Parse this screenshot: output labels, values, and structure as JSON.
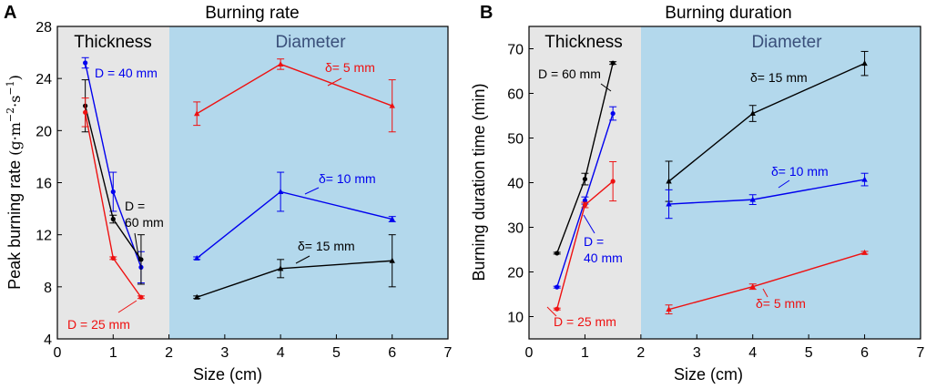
{
  "panels": [
    {
      "letter": "A",
      "title": "Burning rate",
      "xlabel": "Size (cm)",
      "ylabel": "Peak burning rate (g·m⁻²·s⁻¹)",
      "ylabel_main": "Peak burning rate ",
      "ylabel_unit_a": "(g·m",
      "ylabel_sup1": "−2",
      "ylabel_unit_b": "·s",
      "ylabel_sup2": "−1",
      "ylabel_close": ")",
      "region_labels": {
        "thickness": "Thickness",
        "diameter": "Diameter"
      }
    },
    {
      "letter": "B",
      "title": "Burning duration",
      "xlabel": "Size (cm)",
      "ylabel": "Burning duration time (min)",
      "region_labels": {
        "thickness": "Thickness",
        "diameter": "Diameter"
      }
    }
  ],
  "colors": {
    "black": "#000000",
    "blue": "#0000ee",
    "red": "#ee1111",
    "gray_bg": "#e6e6e6",
    "blue_bg": "#b3d8ec"
  },
  "chart_data": [
    {
      "type": "line",
      "title": "Burning rate",
      "xlabel": "Size (cm)",
      "ylabel": "Peak burning rate (g·m⁻²·s⁻¹)",
      "xlim": [
        0,
        7
      ],
      "ylim": [
        4,
        28
      ],
      "xticks": [
        0,
        1,
        2,
        3,
        4,
        5,
        6,
        7
      ],
      "yticks": [
        4,
        8,
        12,
        16,
        20,
        24,
        28
      ],
      "regions": [
        {
          "name": "Thickness",
          "x_range": [
            0,
            2
          ],
          "color": "gray_bg"
        },
        {
          "name": "Diameter",
          "x_range": [
            2,
            7
          ],
          "color": "blue_bg"
        }
      ],
      "series": [
        {
          "name": "D = 40 mm",
          "group": "thickness",
          "color": "blue",
          "marker": "circle",
          "x": [
            0.5,
            1,
            1.5
          ],
          "y": [
            25.2,
            15.3,
            9.5
          ],
          "err": [
            0.4,
            1.5,
            1.2
          ]
        },
        {
          "name": "D = 60 mm",
          "group": "thickness",
          "color": "black",
          "marker": "circle",
          "x": [
            0.5,
            1,
            1.5
          ],
          "y": [
            21.9,
            13.2,
            10.1
          ],
          "err": [
            2.0,
            0.3,
            1.9
          ]
        },
        {
          "name": "D = 25 mm",
          "group": "thickness",
          "color": "red",
          "marker": "circle",
          "x": [
            0.5,
            1,
            1.5
          ],
          "y": [
            21.4,
            10.2,
            7.2
          ],
          "err": [
            1.1,
            0.1,
            0.1
          ]
        },
        {
          "name": "δ= 5 mm",
          "group": "diameter",
          "color": "red",
          "marker": "triangle",
          "x": [
            2.5,
            4,
            6
          ],
          "y": [
            21.3,
            25.1,
            21.9
          ],
          "err": [
            0.9,
            0.4,
            2.0
          ]
        },
        {
          "name": "δ= 10 mm",
          "group": "diameter",
          "color": "blue",
          "marker": "triangle",
          "x": [
            2.5,
            4,
            6
          ],
          "y": [
            10.2,
            15.3,
            13.2
          ],
          "err": [
            0.1,
            1.5,
            0.2
          ]
        },
        {
          "name": "δ= 15 mm",
          "group": "diameter",
          "color": "black",
          "marker": "triangle",
          "x": [
            2.5,
            4,
            6
          ],
          "y": [
            7.2,
            9.4,
            10.0
          ],
          "err": [
            0.1,
            0.7,
            2.0
          ]
        }
      ],
      "annotations": [
        {
          "text": "D = 40 mm",
          "color": "blue"
        },
        {
          "text": "D =",
          "color": "black"
        },
        {
          "text": "60 mm",
          "color": "black"
        },
        {
          "text": "D = 25 mm",
          "color": "red"
        },
        {
          "text": "δ= 5 mm",
          "color": "red"
        },
        {
          "text": "δ= 10 mm",
          "color": "blue"
        },
        {
          "text": "δ= 15 mm",
          "color": "black"
        }
      ]
    },
    {
      "type": "line",
      "title": "Burning duration",
      "xlabel": "Size (cm)",
      "ylabel": "Burning duration time (min)",
      "xlim": [
        0,
        7
      ],
      "ylim": [
        5,
        75
      ],
      "xticks": [
        0,
        1,
        2,
        3,
        4,
        5,
        6,
        7
      ],
      "yticks": [
        10,
        20,
        30,
        40,
        50,
        60,
        70
      ],
      "regions": [
        {
          "name": "Thickness",
          "x_range": [
            0,
            2
          ],
          "color": "gray_bg"
        },
        {
          "name": "Diameter",
          "x_range": [
            2,
            7
          ],
          "color": "blue_bg"
        }
      ],
      "series": [
        {
          "name": "D = 60 mm",
          "group": "thickness",
          "color": "black",
          "marker": "circle",
          "x": [
            0.5,
            1,
            1.5
          ],
          "y": [
            24.2,
            40.8,
            66.8
          ],
          "err": [
            0.2,
            1.3,
            0.3
          ]
        },
        {
          "name": "D = 40 mm",
          "group": "thickness",
          "color": "blue",
          "marker": "circle",
          "x": [
            0.5,
            1,
            1.5
          ],
          "y": [
            16.6,
            36.0,
            55.5
          ],
          "err": [
            0.2,
            0.8,
            1.5
          ]
        },
        {
          "name": "D = 25 mm",
          "group": "thickness",
          "color": "red",
          "marker": "circle",
          "x": [
            0.5,
            1,
            1.5
          ],
          "y": [
            11.7,
            35.0,
            40.3
          ],
          "err": [
            0.2,
            0.6,
            4.4
          ]
        },
        {
          "name": "δ= 15 mm",
          "group": "diameter",
          "color": "black",
          "marker": "triangle",
          "x": [
            2.5,
            4,
            6
          ],
          "y": [
            40.3,
            55.5,
            66.7
          ],
          "err": [
            4.5,
            1.8,
            2.7
          ]
        },
        {
          "name": "δ= 10 mm",
          "group": "diameter",
          "color": "blue",
          "marker": "triangle",
          "x": [
            2.5,
            4,
            6
          ],
          "y": [
            35.2,
            36.2,
            40.7
          ],
          "err": [
            3.2,
            1.1,
            1.4
          ]
        },
        {
          "name": "δ= 5 mm",
          "group": "diameter",
          "color": "red",
          "marker": "triangle",
          "x": [
            2.5,
            4,
            6
          ],
          "y": [
            11.6,
            16.7,
            24.3
          ],
          "err": [
            1.0,
            0.6,
            0.3
          ]
        }
      ],
      "annotations": [
        {
          "text": "D = 60 mm",
          "color": "black"
        },
        {
          "text": "D =",
          "color": "blue"
        },
        {
          "text": "40 mm",
          "color": "blue"
        },
        {
          "text": "D = 25 mm",
          "color": "red"
        },
        {
          "text": "δ= 15 mm",
          "color": "black"
        },
        {
          "text": "δ= 10 mm",
          "color": "blue"
        },
        {
          "text": "δ= 5 mm",
          "color": "red"
        }
      ]
    }
  ]
}
